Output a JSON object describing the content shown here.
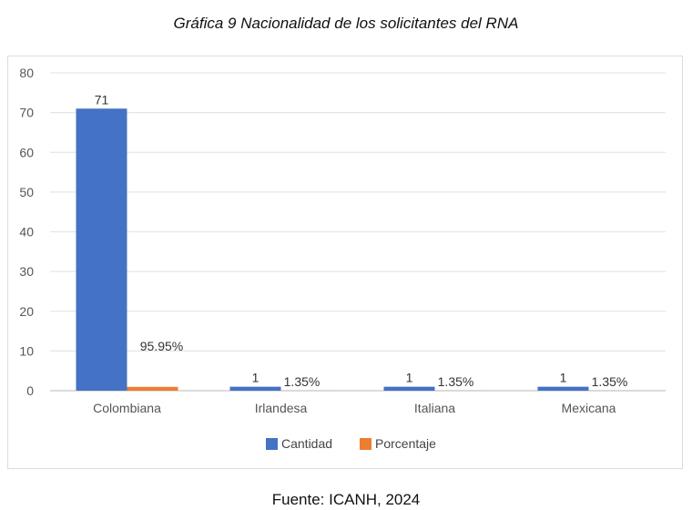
{
  "title": "Gráfica 9 Nacionalidad de los solicitantes del RNA",
  "source": "Fuente: ICANH, 2024",
  "chart_data": {
    "type": "bar",
    "title": "",
    "xlabel": "",
    "ylabel": "",
    "categories": [
      "Colombiana",
      "Irlandesa",
      "Italiana",
      "Mexicana"
    ],
    "series": [
      {
        "name": "Cantidad",
        "values": [
          71,
          1,
          1,
          1
        ],
        "labels": [
          "71",
          "1",
          "1",
          "1"
        ],
        "color": "#4472c4"
      },
      {
        "name": "Porcentaje",
        "values": [
          0.9595,
          0.0135,
          0.0135,
          0.0135
        ],
        "labels": [
          "95.95%",
          "1.35%",
          "1.35%",
          "1.35%"
        ],
        "color": "#ed7d31"
      }
    ],
    "ylim": [
      0,
      80
    ],
    "yticks": [
      0,
      10,
      20,
      30,
      40,
      50,
      60,
      70,
      80
    ],
    "grid": true,
    "legend": "bottom"
  }
}
